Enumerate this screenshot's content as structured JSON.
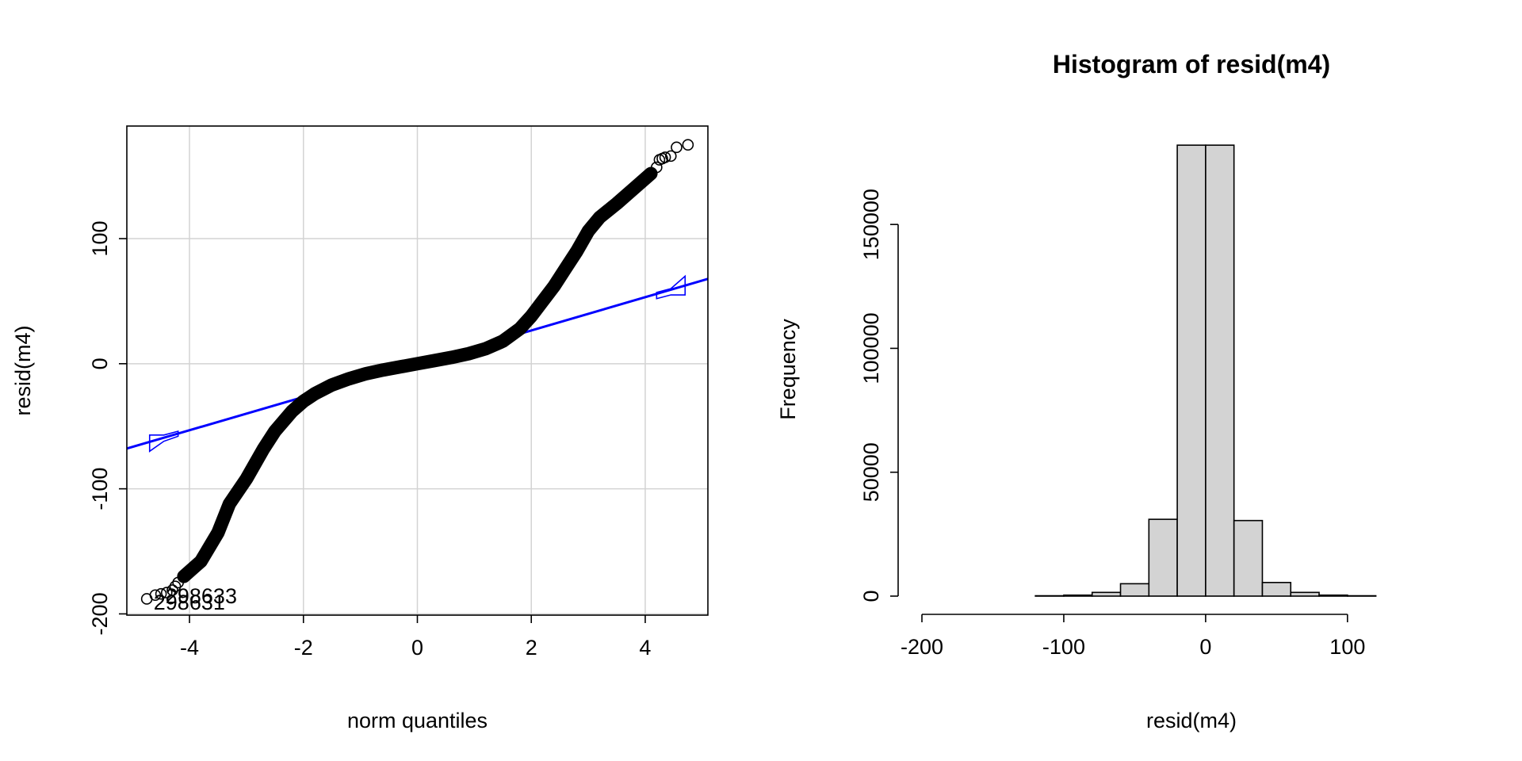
{
  "chart_data": [
    {
      "type": "scatter",
      "title": "",
      "xlabel": "norm quantiles",
      "ylabel": "resid(m4)",
      "xlim": [
        -5.1,
        5.1
      ],
      "ylim": [
        -201,
        190
      ],
      "xticks": [
        -4,
        -2,
        0,
        2,
        4
      ],
      "xtick_labels": [
        "-4",
        "-2",
        "0",
        "2",
        "4"
      ],
      "yticks": [
        -200,
        -100,
        0,
        100
      ],
      "ytick_labels": [
        "-200",
        "-100",
        "0",
        "100"
      ],
      "grid": true,
      "colors": {
        "points": "#000000",
        "reference": "#0000ff",
        "grid": "#d3d3d3"
      },
      "reference_line": {
        "intercept": 0,
        "slope": 13.3
      },
      "envelope": {
        "x": [
          -4.7,
          -4.45,
          -4.2,
          4.2,
          4.45,
          4.7
        ],
        "lower": [
          -70,
          -62,
          -58,
          52,
          55,
          55
        ],
        "upper": [
          -57,
          -57,
          -54,
          57,
          60,
          70
        ]
      },
      "qq_curve": {
        "x": [
          -4.1,
          -3.8,
          -3.5,
          -3.3,
          -3.0,
          -2.7,
          -2.5,
          -2.2,
          -2.0,
          -1.8,
          -1.5,
          -1.2,
          -0.9,
          -0.6,
          -0.3,
          0.0,
          0.3,
          0.6,
          0.9,
          1.2,
          1.5,
          1.8,
          2.0,
          2.2,
          2.4,
          2.6,
          2.8,
          3.0,
          3.2,
          3.5,
          3.8,
          4.1
        ],
        "y": [
          -170,
          -158,
          -135,
          -112,
          -92,
          -68,
          -54,
          -38,
          -30,
          -24,
          -17,
          -12,
          -8,
          -5,
          -2.5,
          0,
          2.5,
          5,
          8,
          12,
          18,
          28,
          38,
          50,
          62,
          76,
          90,
          106,
          117,
          128,
          140,
          152
        ]
      },
      "extreme_points": {
        "x": [
          -4.75,
          -4.6,
          -4.5,
          -4.4,
          -4.3,
          -4.25,
          -4.2,
          4.2,
          4.25,
          4.3,
          4.35,
          4.45,
          4.55,
          4.75
        ],
        "y": [
          -188,
          -185,
          -184,
          -183,
          -181,
          -178,
          -175,
          157,
          163,
          164,
          165,
          166,
          173,
          175
        ]
      },
      "point_labels": [
        {
          "text": "298633",
          "x": -4.42,
          "y": -187
        },
        {
          "text": "298631",
          "x": -4.63,
          "y": -192
        }
      ]
    },
    {
      "type": "bar",
      "title": "Histogram of resid(m4)",
      "xlabel": "resid(m4)",
      "ylabel": "Frequency",
      "xticks": [
        -200,
        -100,
        0,
        100
      ],
      "xtick_labels": [
        "-200",
        "-100",
        "0",
        "100"
      ],
      "yticks": [
        0,
        50000,
        100000,
        150000
      ],
      "ytick_labels": [
        "0",
        "50000",
        "100000",
        "150000"
      ],
      "xlim": [
        -200,
        180
      ],
      "ylim": [
        0,
        183000
      ],
      "grid": false,
      "colors": {
        "bar_fill": "#d3d3d3",
        "bar_stroke": "#000000"
      },
      "bins": [
        {
          "x0": -200,
          "x1": -180,
          "count": 0
        },
        {
          "x0": -180,
          "x1": -160,
          "count": 0
        },
        {
          "x0": -160,
          "x1": -140,
          "count": 0
        },
        {
          "x0": -140,
          "x1": -120,
          "count": 0
        },
        {
          "x0": -120,
          "x1": -100,
          "count": 150
        },
        {
          "x0": -100,
          "x1": -80,
          "count": 400
        },
        {
          "x0": -80,
          "x1": -60,
          "count": 1500
        },
        {
          "x0": -60,
          "x1": -40,
          "count": 5000
        },
        {
          "x0": -40,
          "x1": -20,
          "count": 31000
        },
        {
          "x0": -20,
          "x1": 0,
          "count": 182000
        },
        {
          "x0": 0,
          "x1": 20,
          "count": 182000
        },
        {
          "x0": 20,
          "x1": 40,
          "count": 30500
        },
        {
          "x0": 40,
          "x1": 60,
          "count": 5500
        },
        {
          "x0": 60,
          "x1": 80,
          "count": 1500
        },
        {
          "x0": 80,
          "x1": 100,
          "count": 400
        },
        {
          "x0": 100,
          "x1": 120,
          "count": 150
        },
        {
          "x0": 120,
          "x1": 140,
          "count": 0
        },
        {
          "x0": 140,
          "x1": 160,
          "count": 0
        },
        {
          "x0": 160,
          "x1": 180,
          "count": 0
        }
      ]
    }
  ]
}
